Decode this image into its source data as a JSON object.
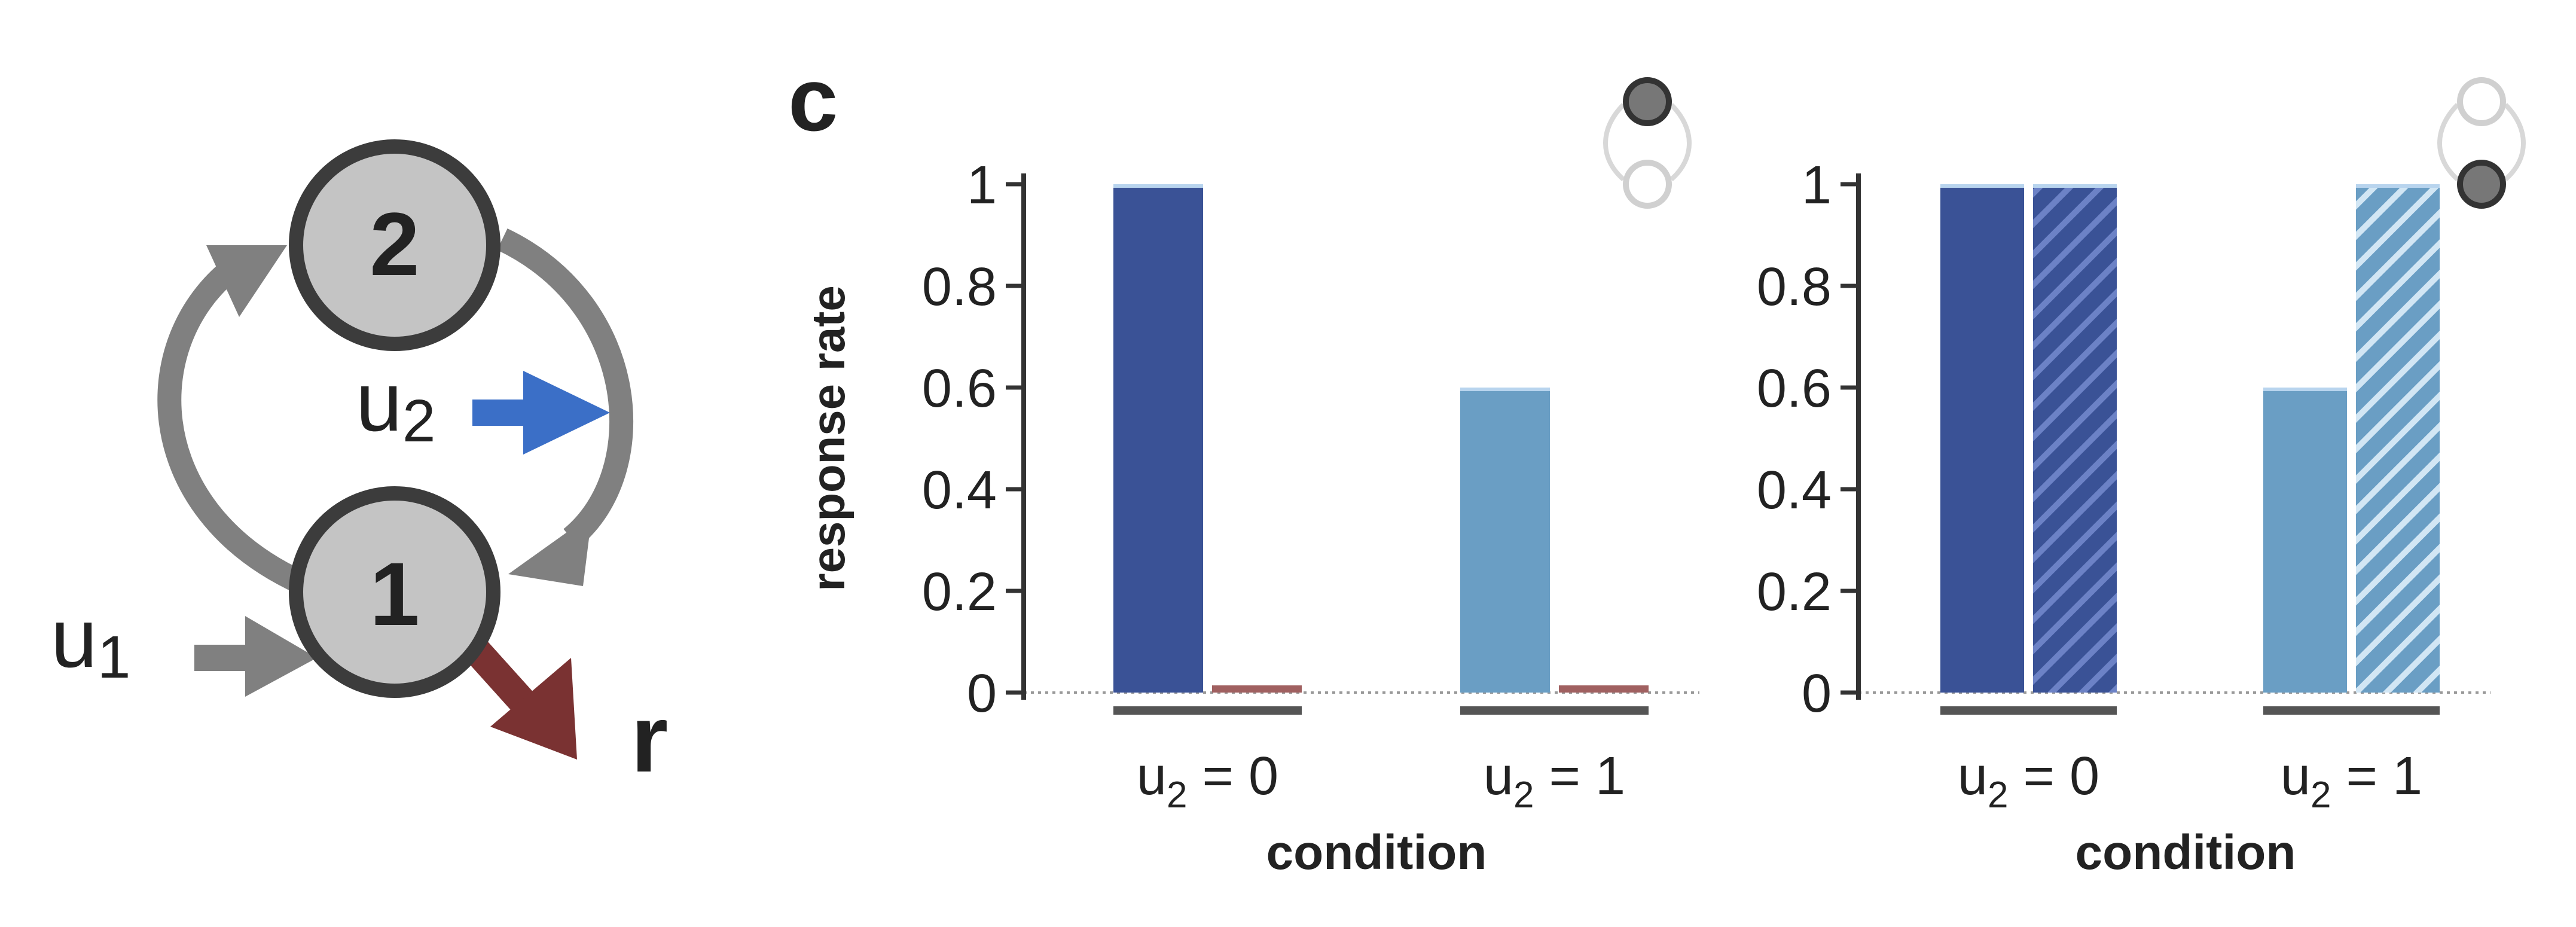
{
  "diagram": {
    "nodes": [
      {
        "id": "node-2",
        "label": "2"
      },
      {
        "id": "node-1",
        "label": "1"
      }
    ],
    "inputs": {
      "u1": {
        "base": "u",
        "sub": "1"
      },
      "u2": {
        "base": "u",
        "sub": "2"
      },
      "r": "r"
    },
    "colors": {
      "node_fill": "#c4c4c4",
      "node_stroke": "#3c3c3c",
      "arrow_gray": "#808080",
      "u2_arrow": "#3b6fc7",
      "r_arrow": "#7a3232"
    }
  },
  "panel_letter": "c",
  "chart_data": [
    {
      "type": "bar",
      "ylabel": "response rate",
      "xlabel": "condition",
      "ylim": [
        0,
        1
      ],
      "yticks": [
        "0",
        "0.2",
        "0.4",
        "0.6",
        "0.8",
        "1"
      ],
      "categories": [
        {
          "base": "u",
          "sub": "2",
          "rest": " = 0"
        },
        {
          "base": "u",
          "sub": "2",
          "rest": " = 1"
        }
      ],
      "bars": [
        {
          "cat": 0,
          "slot": 0,
          "value": 1.0,
          "color": "#3a5296",
          "hatched": false
        },
        {
          "cat": 0,
          "slot": 1,
          "value": 0.0,
          "color": "#a06060",
          "hatched": false
        },
        {
          "cat": 1,
          "slot": 0,
          "value": 0.6,
          "color": "#6a9ec4",
          "hatched": false
        },
        {
          "cat": 1,
          "slot": 1,
          "value": 0.0,
          "color": "#a06060",
          "hatched": false
        }
      ],
      "inset_icon": "top-node-filled"
    },
    {
      "type": "bar",
      "ylabel": "",
      "xlabel": "condition",
      "ylim": [
        0,
        1
      ],
      "yticks": [
        "0",
        "0.2",
        "0.4",
        "0.6",
        "0.8",
        "1"
      ],
      "categories": [
        {
          "base": "u",
          "sub": "2",
          "rest": " = 0"
        },
        {
          "base": "u",
          "sub": "2",
          "rest": " = 1"
        }
      ],
      "bars": [
        {
          "cat": 0,
          "slot": 0,
          "value": 1.0,
          "color": "#3a5296",
          "hatched": false
        },
        {
          "cat": 0,
          "slot": 1,
          "value": 1.0,
          "color": "#3a5296",
          "hatched": true
        },
        {
          "cat": 1,
          "slot": 0,
          "value": 0.6,
          "color": "#6a9ec4",
          "hatched": false
        },
        {
          "cat": 1,
          "slot": 1,
          "value": 1.0,
          "color": "#6a9ec4",
          "hatched": true
        }
      ],
      "inset_icon": "bottom-node-filled"
    }
  ]
}
